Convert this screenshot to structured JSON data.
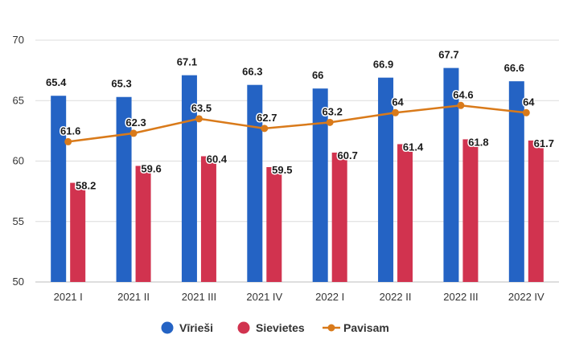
{
  "chart_data": {
    "type": "bar",
    "title": "",
    "xlabel": "",
    "ylabel": "",
    "ylim": [
      50,
      70
    ],
    "yticks": [
      50,
      55,
      60,
      65,
      70
    ],
    "grid": true,
    "legend_position": "bottom",
    "categories": [
      "2021 I",
      "2021 II",
      "2021 III",
      "2021 IV",
      "2022 I",
      "2022 II",
      "2022 III",
      "2022 IV"
    ],
    "series": [
      {
        "name": "Vīrieši",
        "type": "bar",
        "color": "#2463c4",
        "values": [
          65.4,
          65.3,
          67.1,
          66.3,
          66,
          66.9,
          67.7,
          66.6
        ]
      },
      {
        "name": "Sievietes",
        "type": "bar",
        "color": "#d1334f",
        "values": [
          58.2,
          59.6,
          60.4,
          59.5,
          60.7,
          61.4,
          61.8,
          61.7
        ]
      },
      {
        "name": "Pavisam",
        "type": "line",
        "color": "#d97a1a",
        "values": [
          61.6,
          62.3,
          63.5,
          62.7,
          63.2,
          64,
          64.6,
          64
        ]
      }
    ]
  }
}
